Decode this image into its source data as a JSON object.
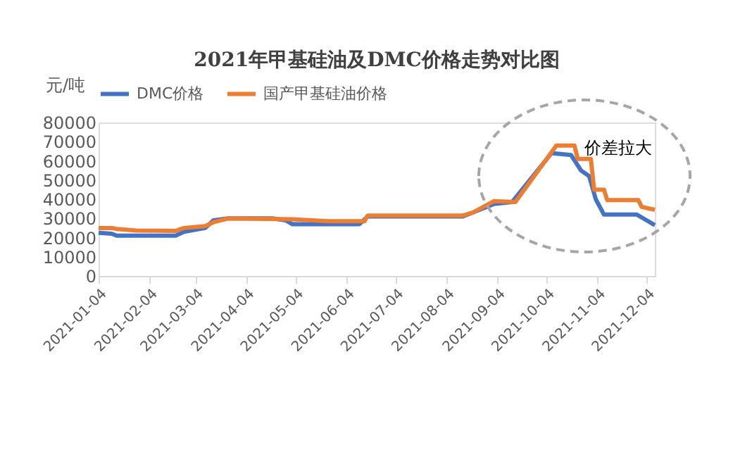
{
  "chart_data": {
    "type": "line",
    "title": "2021年甲基硅油及DMC价格走势对比图",
    "ylabel": "元/吨",
    "xlim": [
      "2021-01-04",
      "2021-12-09"
    ],
    "xticks": [
      "2021-01-04",
      "2021-02-04",
      "2021-03-04",
      "2021-04-04",
      "2021-05-04",
      "2021-06-04",
      "2021-07-04",
      "2021-08-04",
      "2021-09-04",
      "2021-10-04",
      "2021-11-04",
      "2021-12-04"
    ],
    "ylim": [
      0,
      80000
    ],
    "yticks": [
      0,
      10000,
      20000,
      30000,
      40000,
      50000,
      60000,
      70000,
      80000
    ],
    "grid": false,
    "legend": "top",
    "line_style": "solid",
    "marker": "none",
    "annotations": [
      "价差拉大"
    ],
    "series": [
      {
        "name": "DMC价格",
        "color": "#4472c4",
        "x": [
          "2021-01-04",
          "2021-01-12",
          "2021-01-15",
          "2021-02-20",
          "2021-02-25",
          "2021-03-10",
          "2021-03-15",
          "2021-03-24",
          "2021-04-20",
          "2021-04-28",
          "2021-05-02",
          "2021-06-12",
          "2021-06-17",
          "2021-08-14",
          "2021-08-20",
          "2021-09-02",
          "2021-09-13",
          "2021-10-07",
          "2021-10-19",
          "2021-10-25",
          "2021-10-30",
          "2021-11-03",
          "2021-11-08",
          "2021-11-28",
          "2021-12-02",
          "2021-12-09"
        ],
        "values": [
          22500,
          22000,
          21000,
          21000,
          23000,
          25000,
          29000,
          30000,
          30000,
          29000,
          27000,
          27000,
          31000,
          31000,
          33000,
          37500,
          38500,
          64000,
          63000,
          55000,
          52000,
          40000,
          32000,
          32000,
          30000,
          26500
        ]
      },
      {
        "name": "国产甲基硅油价格",
        "color": "#ed7d31",
        "x": [
          "2021-01-04",
          "2021-01-12",
          "2021-01-15",
          "2021-01-27",
          "2021-02-20",
          "2021-02-25",
          "2021-03-10",
          "2021-03-15",
          "2021-03-24",
          "2021-05-02",
          "2021-05-24",
          "2021-06-15",
          "2021-06-17",
          "2021-08-14",
          "2021-08-20",
          "2021-09-02",
          "2021-09-15",
          "2021-10-10",
          "2021-10-21",
          "2021-10-23",
          "2021-10-31",
          "2021-11-02",
          "2021-11-08",
          "2021-11-10",
          "2021-11-29",
          "2021-12-01",
          "2021-12-09"
        ],
        "values": [
          25000,
          25000,
          24500,
          23700,
          23500,
          25000,
          26000,
          28000,
          30000,
          29500,
          28500,
          28500,
          31500,
          31500,
          33000,
          39000,
          38500,
          68000,
          68000,
          61000,
          61000,
          45000,
          45000,
          39500,
          39500,
          36000,
          34500
        ]
      }
    ]
  }
}
